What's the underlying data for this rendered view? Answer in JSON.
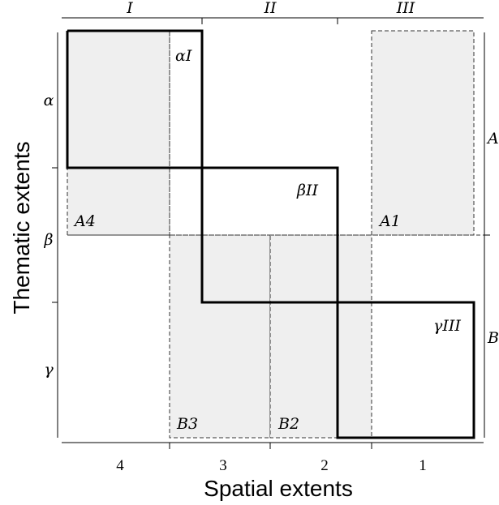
{
  "top_labels": [
    "I",
    "II",
    "III"
  ],
  "left_labels": [
    "α",
    "β",
    "γ"
  ],
  "right_labels": [
    "A",
    "B"
  ],
  "bottom_labels": [
    "4",
    "3",
    "2",
    "1"
  ],
  "region_labels": {
    "alphaI": "αI",
    "betaII": "βII",
    "gammaIII": "γIII",
    "A4": "A4",
    "A1": "A1",
    "B3": "B3",
    "B2": "B2"
  },
  "axes": {
    "x_title": "Spatial extents",
    "y_title": "Thematic extents"
  }
}
